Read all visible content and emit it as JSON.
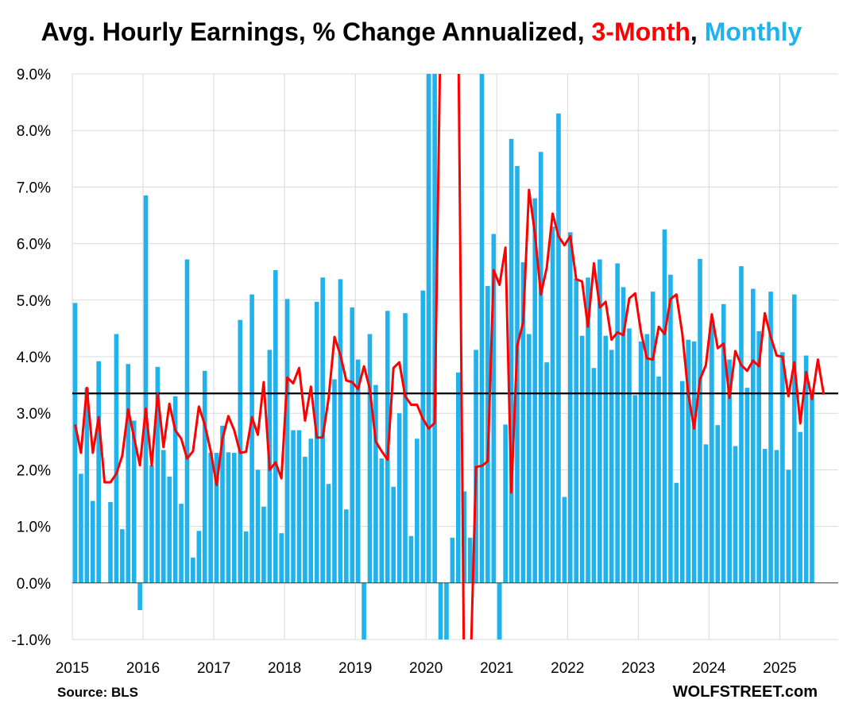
{
  "title": {
    "main": "Avg. Hourly Earnings, % Change Annualized,",
    "series_3m": "3-Month",
    "comma": ",",
    "series_monthly": "Monthly"
  },
  "source": "Source: BLS",
  "brand": "WOLFSTREET.com",
  "colors": {
    "monthly": "#1fb2ec",
    "three_month": "#ff0000",
    "reference": "#000000",
    "grid": "#d9d9d9"
  },
  "chart_data": {
    "type": "bar",
    "title": "Avg. Hourly Earnings, % Change Annualized, 3-Month, Monthly",
    "ylim": [
      -1.0,
      9.0
    ],
    "y_ticks": [
      "-1.0%",
      "0.0%",
      "1.0%",
      "2.0%",
      "3.0%",
      "4.0%",
      "5.0%",
      "6.0%",
      "7.0%",
      "8.0%",
      "9.0%"
    ],
    "x_ticks": [
      "2015",
      "2016",
      "2017",
      "2018",
      "2019",
      "2020",
      "2021",
      "2022",
      "2023",
      "2024",
      "2025"
    ],
    "x_start": "2015-01",
    "reference_line": 3.35,
    "grid": true,
    "series": [
      {
        "name": "Monthly",
        "type": "bar",
        "values": [
          4.95,
          1.93,
          3.45,
          1.45,
          3.92,
          0.0,
          1.43,
          4.4,
          0.95,
          3.87,
          2.87,
          -0.48,
          6.85,
          2.08,
          3.82,
          2.35,
          1.88,
          3.3,
          1.4,
          5.72,
          0.45,
          0.92,
          3.75,
          2.3,
          2.3,
          2.78,
          2.31,
          2.3,
          4.65,
          0.91,
          5.1,
          2.0,
          1.35,
          4.12,
          5.53,
          0.88,
          5.02,
          2.7,
          2.7,
          2.23,
          2.55,
          4.97,
          5.4,
          1.75,
          3.6,
          5.37,
          1.3,
          4.87,
          3.95,
          -1.0,
          4.4,
          3.5,
          2.2,
          4.81,
          1.7,
          3.0,
          4.77,
          0.83,
          2.55,
          5.17,
          9.0,
          9.0,
          -1.0,
          -1.0,
          0.8,
          3.72,
          1.62,
          0.8,
          4.12,
          9.0,
          5.25,
          6.17,
          -1.0,
          2.8,
          7.85,
          7.37,
          5.67,
          4.4,
          6.8,
          7.62,
          3.9,
          6.3,
          8.3,
          1.52,
          6.2,
          5.38,
          4.37,
          5.4,
          3.8,
          5.72,
          4.37,
          4.12,
          5.65,
          5.23,
          4.5,
          3.32,
          4.27,
          4.4,
          5.15,
          3.65,
          6.25,
          5.45,
          1.77,
          3.57,
          4.3,
          4.27,
          5.73,
          2.45,
          4.58,
          2.79,
          4.93,
          3.95,
          2.42,
          5.6,
          3.45,
          5.2,
          4.45,
          2.37,
          5.15,
          2.35,
          4.08,
          2.0,
          5.1,
          2.67,
          4.02,
          3.33
        ]
      },
      {
        "name": "3-Month",
        "type": "line",
        "values": [
          2.8,
          2.3,
          3.45,
          2.3,
          2.93,
          1.78,
          1.78,
          1.93,
          2.25,
          3.07,
          2.57,
          2.08,
          3.08,
          2.08,
          3.35,
          2.4,
          3.17,
          2.7,
          2.55,
          2.2,
          2.33,
          3.12,
          2.8,
          2.33,
          1.73,
          2.55,
          2.95,
          2.7,
          2.3,
          2.32,
          2.93,
          2.62,
          3.55,
          2.0,
          2.13,
          1.85,
          3.63,
          3.53,
          3.8,
          2.87,
          3.47,
          2.57,
          2.57,
          3.27,
          4.35,
          4.03,
          3.58,
          3.55,
          3.43,
          3.83,
          3.43,
          2.5,
          2.33,
          2.18,
          3.8,
          3.9,
          3.3,
          3.15,
          3.15,
          2.9,
          2.73,
          2.83,
          9.0,
          9.0,
          9.0,
          9.0,
          -1.0,
          -1.0,
          2.05,
          2.07,
          2.15,
          5.53,
          5.27,
          5.93,
          1.6,
          4.2,
          4.6,
          6.95,
          6.17,
          5.1,
          5.57,
          6.53,
          6.13,
          5.97,
          6.13,
          5.37,
          5.33,
          4.53,
          5.65,
          4.87,
          4.97,
          4.3,
          4.43,
          4.38,
          5.03,
          5.12,
          4.43,
          3.97,
          3.95,
          4.53,
          4.4,
          5.02,
          5.1,
          4.4,
          3.35,
          2.73,
          3.6,
          3.85,
          4.75,
          4.15,
          4.23,
          3.27,
          4.1,
          3.85,
          3.75,
          3.93,
          3.83,
          4.77,
          4.35,
          4.02,
          4.0,
          3.3,
          3.9,
          2.82,
          3.73,
          3.25,
          3.95,
          3.33
        ]
      }
    ]
  }
}
